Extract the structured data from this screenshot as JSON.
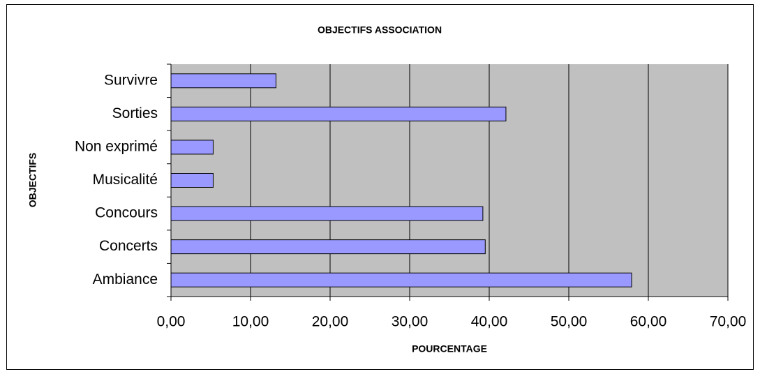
{
  "chart_data": {
    "type": "bar",
    "orientation": "horizontal",
    "title": "OBJECTIFS ASSOCIATION",
    "x_label": "POURCENTAGE",
    "y_label": "OBJECTIFS",
    "categories": [
      "Survivre",
      "Sorties",
      "Non exprimé",
      "Musicalité",
      "Concours",
      "Concerts",
      "Ambiance"
    ],
    "values": [
      13.2,
      42.1,
      5.3,
      5.3,
      39.2,
      39.5,
      57.9
    ],
    "color": "#9999ff",
    "xlim": [
      0,
      70
    ],
    "xticks": [
      {
        "value": 0,
        "label": "0,00"
      },
      {
        "value": 10,
        "label": "10,00"
      },
      {
        "value": 20,
        "label": "20,00"
      },
      {
        "value": 30,
        "label": "30,00"
      },
      {
        "value": 40,
        "label": "40,00"
      },
      {
        "value": 50,
        "label": "50,00"
      },
      {
        "value": 60,
        "label": "60,00"
      },
      {
        "value": 70,
        "label": "70,00"
      }
    ],
    "grid": true
  }
}
